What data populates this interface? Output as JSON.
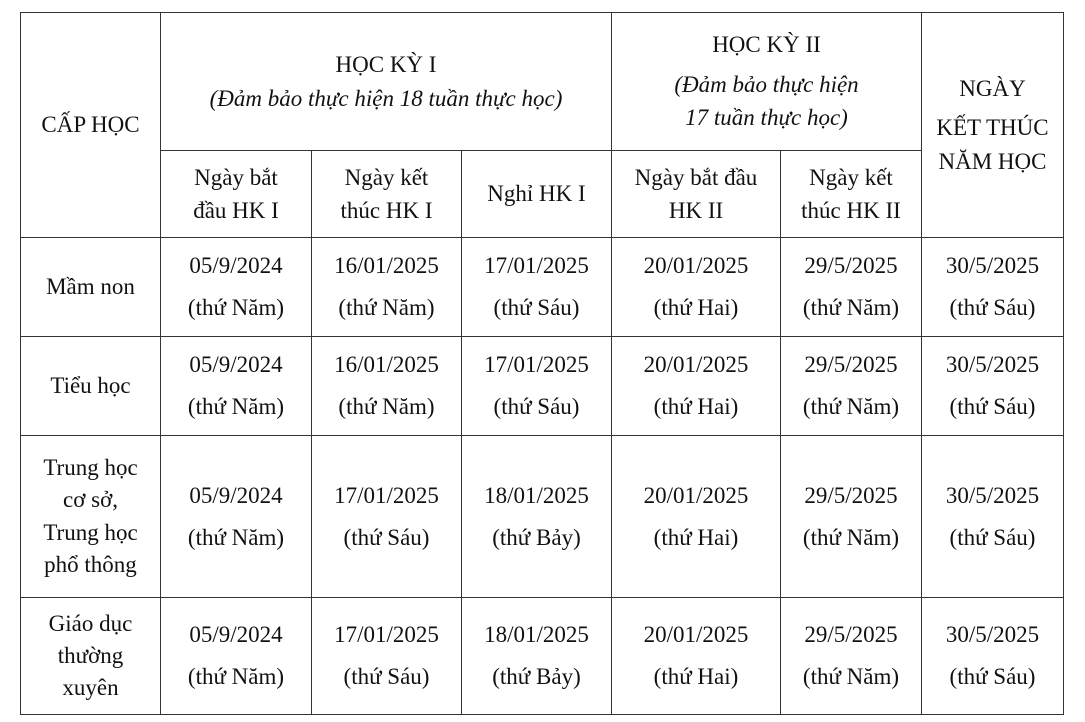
{
  "header": {
    "level_col": "CẤP HỌC",
    "hk1": {
      "title": "HỌC KỲ I",
      "note": "(Đảm bảo thực hiện 18 tuần thực học)"
    },
    "hk2": {
      "title": "HỌC KỲ II",
      "note_line1": "(Đảm bảo thực hiện",
      "note_line2": "17 tuần thực học)"
    },
    "end_col": {
      "line1": "NGÀY",
      "line2": "KẾT THÚC",
      "line3": "NĂM HỌC"
    },
    "sub": [
      {
        "l1": "Ngày bắt",
        "l2": "đầu HK I"
      },
      {
        "l1": "Ngày kết",
        "l2": "thúc HK I"
      },
      {
        "l1": "Nghỉ HK I",
        "l2": ""
      },
      {
        "l1": "Ngày bắt đầu",
        "l2": "HK II"
      },
      {
        "l1": "Ngày kết",
        "l2": "thúc HK II"
      }
    ]
  },
  "rows": [
    {
      "level": [
        "Mầm non"
      ],
      "cells": [
        {
          "d": "05/9/2024",
          "w": "(thứ Năm)"
        },
        {
          "d": "16/01/2025",
          "w": "(thứ Năm)"
        },
        {
          "d": "17/01/2025",
          "w": "(thứ Sáu)"
        },
        {
          "d": "20/01/2025",
          "w": "(thứ Hai)"
        },
        {
          "d": "29/5/2025",
          "w": "(thứ Năm)"
        },
        {
          "d": "30/5/2025",
          "w": "(thứ Sáu)"
        }
      ]
    },
    {
      "level": [
        "Tiểu học"
      ],
      "cells": [
        {
          "d": "05/9/2024",
          "w": "(thứ Năm)"
        },
        {
          "d": "16/01/2025",
          "w": "(thứ Năm)"
        },
        {
          "d": "17/01/2025",
          "w": "(thứ Sáu)"
        },
        {
          "d": "20/01/2025",
          "w": "(thứ Hai)"
        },
        {
          "d": "29/5/2025",
          "w": "(thứ Năm)"
        },
        {
          "d": "30/5/2025",
          "w": "(thứ Sáu)"
        }
      ]
    },
    {
      "level": [
        "Trung học",
        "cơ sở,",
        "Trung học",
        "phổ thông"
      ],
      "cells": [
        {
          "d": "05/9/2024",
          "w": "(thứ Năm)"
        },
        {
          "d": "17/01/2025",
          "w": "(thứ Sáu)"
        },
        {
          "d": "18/01/2025",
          "w": "(thứ Bảy)"
        },
        {
          "d": "20/01/2025",
          "w": "(thứ Hai)"
        },
        {
          "d": "29/5/2025",
          "w": "(thứ Năm)"
        },
        {
          "d": "30/5/2025",
          "w": "(thứ Sáu)"
        }
      ]
    },
    {
      "level": [
        "Giáo dục",
        "thường",
        "xuyên"
      ],
      "cells": [
        {
          "d": "05/9/2024",
          "w": "(thứ Năm)"
        },
        {
          "d": "17/01/2025",
          "w": "(thứ Sáu)"
        },
        {
          "d": "18/01/2025",
          "w": "(thứ Bảy)"
        },
        {
          "d": "20/01/2025",
          "w": "(thứ Hai)"
        },
        {
          "d": "29/5/2025",
          "w": "(thứ Năm)"
        },
        {
          "d": "30/5/2025",
          "w": "(thứ Sáu)"
        }
      ]
    }
  ]
}
